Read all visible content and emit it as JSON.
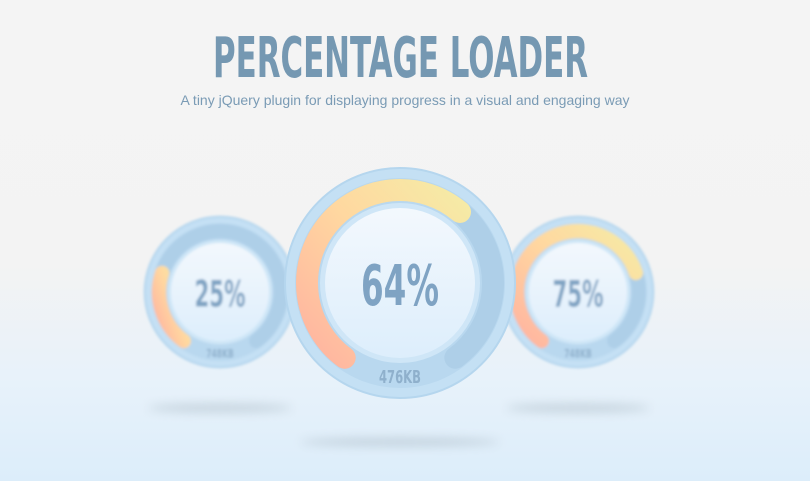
{
  "header": {
    "title": "PERCENTAGE LOADER",
    "subtitle": "A tiny jQuery plugin for displaying progress in a visual and engaging way"
  },
  "loaders": [
    {
      "name": "left",
      "percent": 25,
      "label": "25%",
      "size_label": "748KB"
    },
    {
      "name": "right",
      "percent": 75,
      "label": "75%",
      "size_label": "748KB"
    },
    {
      "name": "center",
      "percent": 64,
      "label": "64%",
      "size_label": "476KB"
    }
  ],
  "colors": {
    "title": "#7598b2",
    "text": "#7fa3c3",
    "ring": "#c4e0f4",
    "track": "#aecfe8",
    "inner": "#eaf4fd",
    "fill_start": "#ffb3a0",
    "fill_mid": "#ffd8a0",
    "fill_end": "#f5eba6"
  }
}
